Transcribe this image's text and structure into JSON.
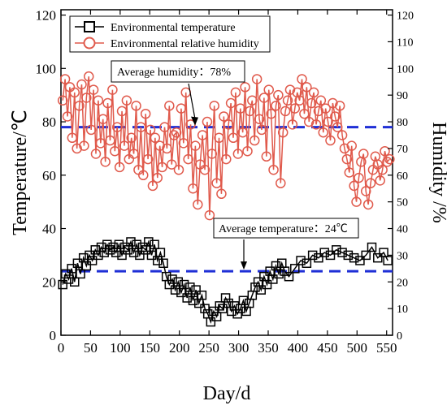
{
  "chart_data": {
    "type": "line",
    "title": "",
    "xlabel": "Day/d",
    "ylabel_left": "Temperature/℃",
    "ylabel_right": "Humidity /%",
    "xlim": [
      0,
      560
    ],
    "ylim_left": [
      0,
      122
    ],
    "ylim_right": [
      0,
      122
    ],
    "x_ticks": [
      0,
      50,
      100,
      150,
      200,
      250,
      300,
      350,
      400,
      450,
      500,
      550
    ],
    "x_tick_labels": [
      "0",
      "50",
      "100",
      "150",
      "200",
      "250",
      "300",
      "350",
      "400",
      "450",
      "500",
      "550"
    ],
    "y_left_ticks": [
      0,
      20,
      40,
      60,
      80,
      100,
      120
    ],
    "y_left_tick_labels": [
      "0",
      "20",
      "40",
      "60",
      "80",
      "100",
      "120"
    ],
    "y_right_ticks": [
      0,
      10,
      20,
      30,
      40,
      50,
      60,
      70,
      80,
      90,
      100,
      110,
      120
    ],
    "y_right_tick_labels": [
      "0",
      "10",
      "20",
      "30",
      "40",
      "50",
      "60",
      "70",
      "80",
      "90",
      "100",
      "110",
      "120"
    ],
    "grid": false,
    "legend_position": "top-left",
    "series": [
      {
        "name": "Environmental temperature",
        "color": "#000000",
        "marker": "square",
        "axis": "left",
        "x": [
          3,
          8,
          13,
          18,
          23,
          28,
          33,
          38,
          43,
          48,
          53,
          58,
          63,
          68,
          73,
          78,
          83,
          88,
          93,
          98,
          103,
          108,
          113,
          118,
          123,
          128,
          133,
          138,
          143,
          148,
          153,
          158,
          163,
          168,
          173,
          178,
          183,
          188,
          193,
          198,
          203,
          208,
          213,
          218,
          223,
          228,
          233,
          238,
          243,
          248,
          253,
          258,
          263,
          268,
          273,
          278,
          283,
          288,
          293,
          298,
          303,
          308,
          313,
          318,
          323,
          328,
          333,
          338,
          343,
          348,
          353,
          358,
          363,
          368,
          373,
          378,
          385,
          395,
          405,
          415,
          425,
          435,
          445,
          455,
          465,
          475,
          485,
          495,
          505,
          515,
          525,
          535,
          545,
          552
        ],
        "y": [
          19,
          23,
          21,
          25,
          20,
          27,
          23,
          29,
          26,
          30,
          28,
          32,
          30,
          33,
          31,
          34,
          32,
          33,
          31,
          34,
          30,
          33,
          32,
          35,
          31,
          34,
          30,
          33,
          32,
          35,
          30,
          34,
          28,
          31,
          27,
          22,
          19,
          21,
          17,
          20,
          16,
          19,
          14,
          18,
          13,
          17,
          12,
          15,
          10,
          8,
          5,
          9,
          7,
          11,
          10,
          14,
          12,
          9,
          11,
          8,
          10,
          13,
          9,
          12,
          15,
          18,
          20,
          17,
          22,
          19,
          24,
          21,
          26,
          23,
          27,
          24,
          22,
          25,
          28,
          27,
          30,
          29,
          31,
          30,
          32,
          31,
          30,
          29,
          28,
          30,
          33,
          29,
          31,
          28
        ]
      },
      {
        "name": "Environmental relative humidity",
        "color": "#e05a4c",
        "marker": "circle",
        "axis": "right",
        "x": [
          3,
          7,
          11,
          15,
          19,
          23,
          27,
          31,
          35,
          39,
          43,
          47,
          51,
          55,
          59,
          63,
          67,
          71,
          75,
          79,
          83,
          87,
          91,
          95,
          99,
          103,
          107,
          111,
          115,
          119,
          123,
          127,
          131,
          135,
          139,
          143,
          147,
          151,
          155,
          159,
          163,
          167,
          171,
          175,
          179,
          183,
          187,
          191,
          195,
          199,
          203,
          207,
          211,
          215,
          219,
          223,
          227,
          231,
          235,
          239,
          243,
          247,
          251,
          255,
          259,
          263,
          267,
          271,
          275,
          279,
          283,
          287,
          291,
          295,
          299,
          303,
          307,
          311,
          315,
          319,
          323,
          327,
          331,
          335,
          339,
          343,
          347,
          351,
          355,
          359,
          363,
          367,
          371,
          375,
          379,
          383,
          387,
          391,
          395,
          399,
          403,
          407,
          411,
          415,
          419,
          423,
          427,
          431,
          435,
          439,
          443,
          447,
          451,
          455,
          459,
          463,
          467,
          471,
          475,
          479,
          483,
          487,
          491,
          495,
          499,
          503,
          507,
          511,
          515,
          519,
          523,
          527,
          531,
          535,
          539,
          543,
          547,
          551,
          555
        ],
        "y": [
          88,
          96,
          82,
          93,
          74,
          91,
          70,
          86,
          94,
          71,
          89,
          97,
          77,
          92,
          68,
          88,
          72,
          81,
          65,
          87,
          73,
          92,
          69,
          78,
          63,
          84,
          71,
          88,
          66,
          74,
          68,
          86,
          62,
          78,
          60,
          83,
          66,
          77,
          56,
          74,
          59,
          71,
          63,
          78,
          70,
          86,
          64,
          75,
          76,
          62,
          85,
          72,
          91,
          66,
          79,
          55,
          71,
          49,
          64,
          75,
          62,
          80,
          45,
          68,
          86,
          57,
          74,
          53,
          82,
          66,
          79,
          87,
          74,
          91,
          68,
          85,
          76,
          93,
          69,
          84,
          88,
          73,
          96,
          81,
          77,
          89,
          67,
          92,
          83,
          62,
          86,
          90,
          57,
          76,
          84,
          88,
          92,
          79,
          85,
          91,
          88,
          96,
          83,
          93,
          80,
          87,
          91,
          79,
          84,
          88,
          76,
          85,
          80,
          73,
          87,
          82,
          78,
          86,
          75,
          70,
          66,
          61,
          71,
          56,
          50,
          59,
          65,
          68,
          54,
          49,
          57,
          62,
          67,
          64,
          58,
          62,
          69,
          65,
          66
        ]
      }
    ],
    "reference_lines": [
      {
        "axis": "right",
        "value": 78,
        "color": "#1f2fd6",
        "style": "dashed",
        "label": "Average humidity：78%"
      },
      {
        "axis": "left",
        "value": 24,
        "color": "#1f2fd6",
        "style": "dashed",
        "label": "Average temperature：24℃"
      }
    ]
  }
}
